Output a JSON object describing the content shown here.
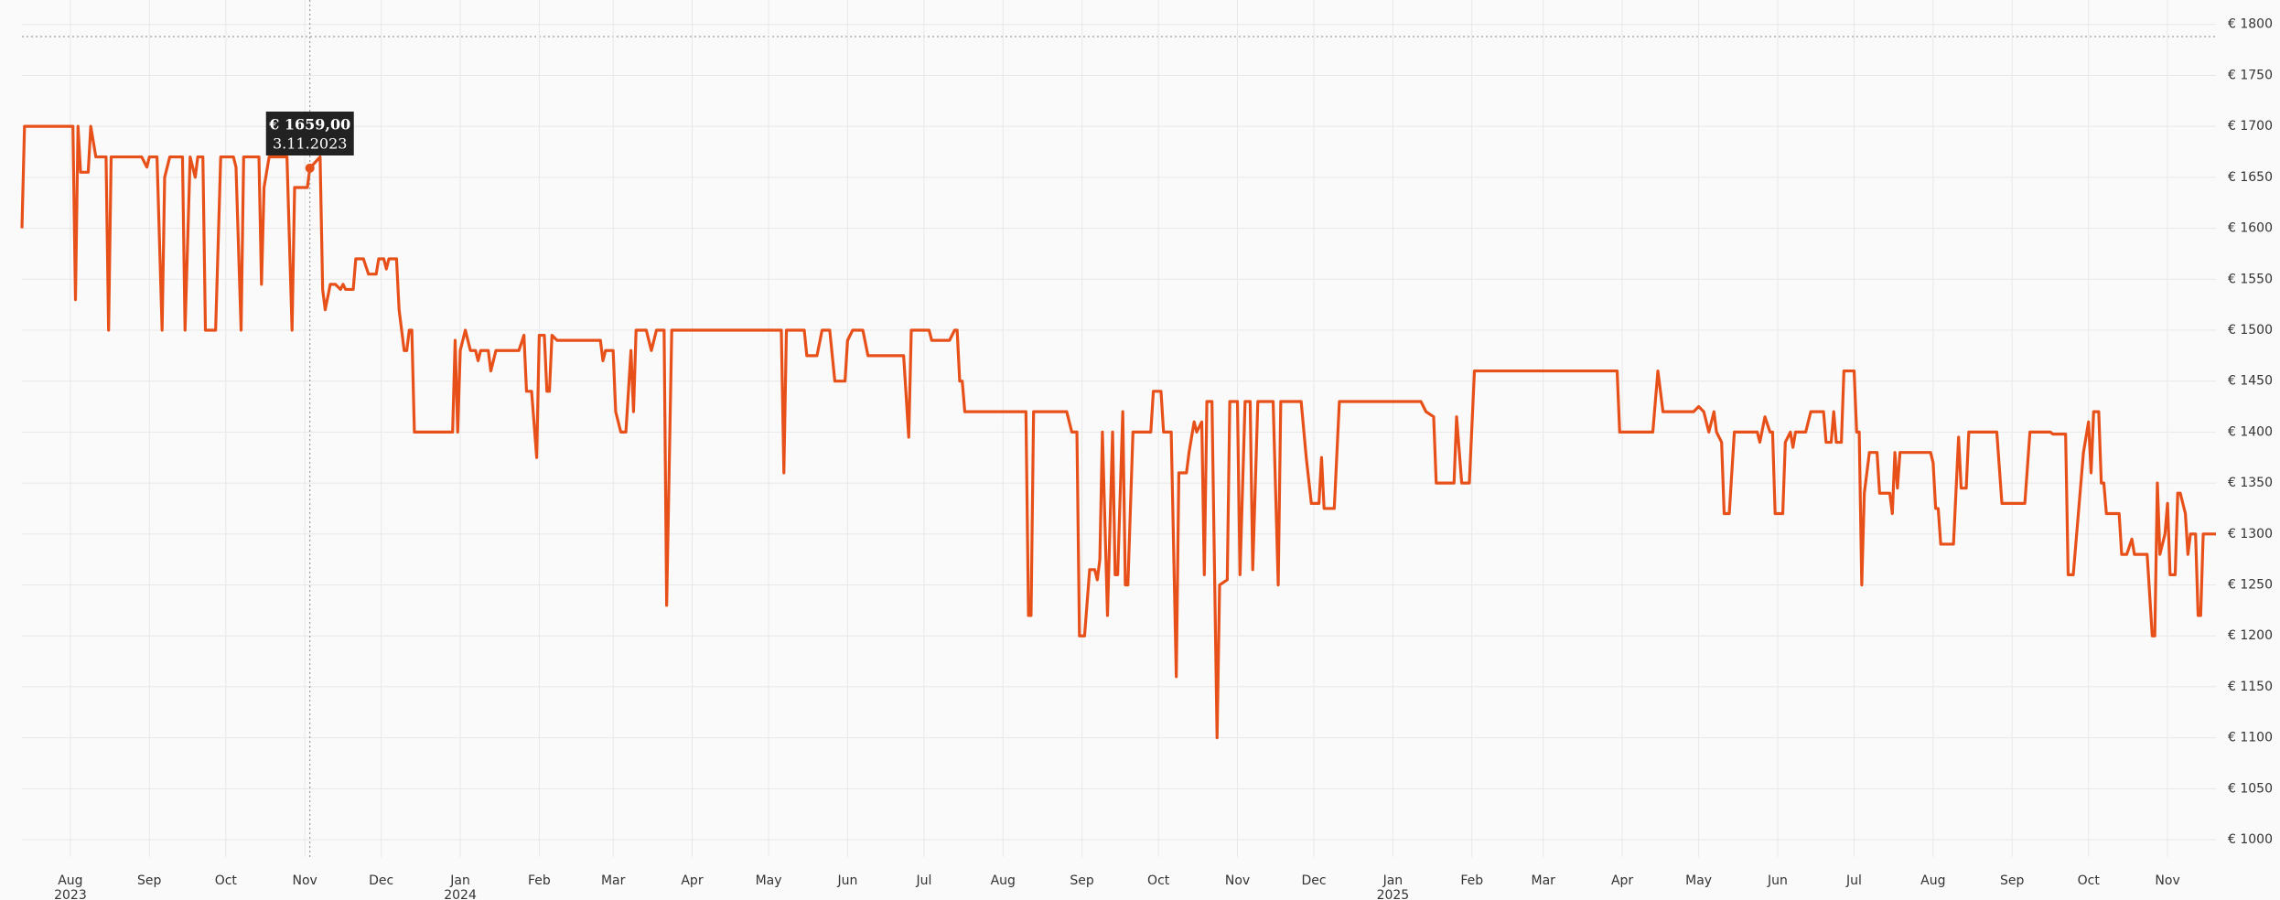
{
  "chart_data": {
    "type": "line",
    "color": "#e8501a",
    "grid": true,
    "xlim": [
      "2023-07-13",
      "2025-11-20"
    ],
    "ylim": [
      983,
      1824
    ],
    "yticks": [
      {
        "value": 1000,
        "label": "€ 1000"
      },
      {
        "value": 1050,
        "label": "€ 1050"
      },
      {
        "value": 1100,
        "label": "€ 1100"
      },
      {
        "value": 1150,
        "label": "€ 1150"
      },
      {
        "value": 1200,
        "label": "€ 1200"
      },
      {
        "value": 1250,
        "label": "€ 1250"
      },
      {
        "value": 1300,
        "label": "€ 1300"
      },
      {
        "value": 1350,
        "label": "€ 1350"
      },
      {
        "value": 1400,
        "label": "€ 1400"
      },
      {
        "value": 1450,
        "label": "€ 1450"
      },
      {
        "value": 1500,
        "label": "€ 1500"
      },
      {
        "value": 1550,
        "label": "€ 1550"
      },
      {
        "value": 1600,
        "label": "€ 1600"
      },
      {
        "value": 1650,
        "label": "€ 1650"
      },
      {
        "value": 1700,
        "label": "€ 1700"
      },
      {
        "value": 1750,
        "label": "€ 1750"
      },
      {
        "value": 1800,
        "label": "€ 1800"
      }
    ],
    "xticks": [
      {
        "value": "2023-08-01",
        "label": "Aug"
      },
      {
        "value": "2023-09-01",
        "label": "Sep"
      },
      {
        "value": "2023-10-01",
        "label": "Oct"
      },
      {
        "value": "2023-11-01",
        "label": "Nov"
      },
      {
        "value": "2023-12-01",
        "label": "Dec"
      },
      {
        "value": "2024-01-01",
        "label": "Jan"
      },
      {
        "value": "2024-02-01",
        "label": "Feb"
      },
      {
        "value": "2024-03-01",
        "label": "Mar"
      },
      {
        "value": "2024-04-01",
        "label": "Apr"
      },
      {
        "value": "2024-05-01",
        "label": "May"
      },
      {
        "value": "2024-06-01",
        "label": "Jun"
      },
      {
        "value": "2024-07-01",
        "label": "Jul"
      },
      {
        "value": "2024-08-01",
        "label": "Aug"
      },
      {
        "value": "2024-09-01",
        "label": "Sep"
      },
      {
        "value": "2024-10-01",
        "label": "Oct"
      },
      {
        "value": "2024-11-01",
        "label": "Nov"
      },
      {
        "value": "2024-12-01",
        "label": "Dec"
      },
      {
        "value": "2025-01-01",
        "label": "Jan"
      },
      {
        "value": "2025-02-01",
        "label": "Feb"
      },
      {
        "value": "2025-03-01",
        "label": "Mar"
      },
      {
        "value": "2025-04-01",
        "label": "Apr"
      },
      {
        "value": "2025-05-01",
        "label": "May"
      },
      {
        "value": "2025-06-01",
        "label": "Jun"
      },
      {
        "value": "2025-07-01",
        "label": "Jul"
      },
      {
        "value": "2025-08-01",
        "label": "Aug"
      },
      {
        "value": "2025-09-01",
        "label": "Sep"
      },
      {
        "value": "2025-10-01",
        "label": "Oct"
      },
      {
        "value": "2025-11-01",
        "label": "Nov"
      }
    ],
    "year_labels": [
      {
        "value": "2023-08-01",
        "label": "2023"
      },
      {
        "value": "2024-01-01",
        "label": "2024"
      },
      {
        "value": "2025-01-01",
        "label": "2025"
      }
    ],
    "tooltip": {
      "x": "2023-11-03",
      "value": 1659,
      "label": "€ 1659,00",
      "date_label": "3.11.2023"
    },
    "x": [
      "2023-07-13",
      "2023-07-14",
      "2023-07-28",
      "2023-08-02",
      "2023-08-03",
      "2023-08-04",
      "2023-08-05",
      "2023-08-08",
      "2023-08-09",
      "2023-08-11",
      "2023-08-15",
      "2023-08-16",
      "2023-08-17",
      "2023-08-29",
      "2023-08-31",
      "2023-09-01",
      "2023-09-04",
      "2023-09-06",
      "2023-09-07",
      "2023-09-09",
      "2023-09-14",
      "2023-09-15",
      "2023-09-17",
      "2023-09-19",
      "2023-09-20",
      "2023-09-22",
      "2023-09-23",
      "2023-09-27",
      "2023-09-29",
      "2023-10-04",
      "2023-10-05",
      "2023-10-07",
      "2023-10-08",
      "2023-10-14",
      "2023-10-15",
      "2023-10-16",
      "2023-10-18",
      "2023-10-25",
      "2023-10-27",
      "2023-10-28",
      "2023-11-02",
      "2023-11-03",
      "2023-11-07",
      "2023-11-08",
      "2023-11-09",
      "2023-11-11",
      "2023-11-13",
      "2023-11-15",
      "2023-11-16",
      "2023-11-17",
      "2023-11-20",
      "2023-11-21",
      "2023-11-24",
      "2023-11-26",
      "2023-11-29",
      "2023-11-30",
      "2023-12-02",
      "2023-12-03",
      "2023-12-04",
      "2023-12-07",
      "2023-12-08",
      "2023-12-10",
      "2023-12-11",
      "2023-12-12",
      "2023-12-13",
      "2023-12-14",
      "2023-12-29",
      "2023-12-30",
      "2023-12-31",
      "2024-01-01",
      "2024-01-03",
      "2024-01-05",
      "2024-01-07",
      "2024-01-08",
      "2024-01-09",
      "2024-01-12",
      "2024-01-13",
      "2024-01-15",
      "2024-01-24",
      "2024-01-26",
      "2024-01-27",
      "2024-01-29",
      "2024-01-31",
      "2024-02-01",
      "2024-02-03",
      "2024-02-04",
      "2024-02-05",
      "2024-02-06",
      "2024-02-08",
      "2024-02-25",
      "2024-02-26",
      "2024-02-27",
      "2024-03-01",
      "2024-03-02",
      "2024-03-04",
      "2024-03-06",
      "2024-03-08",
      "2024-03-09",
      "2024-03-10",
      "2024-03-14",
      "2024-03-16",
      "2024-03-18",
      "2024-03-21",
      "2024-03-22",
      "2024-03-24",
      "2024-05-06",
      "2024-05-07",
      "2024-05-08",
      "2024-05-15",
      "2024-05-16",
      "2024-05-20",
      "2024-05-22",
      "2024-05-25",
      "2024-05-27",
      "2024-05-31",
      "2024-06-01",
      "2024-06-03",
      "2024-06-07",
      "2024-06-09",
      "2024-06-23",
      "2024-06-25",
      "2024-06-26",
      "2024-07-03",
      "2024-07-04",
      "2024-07-11",
      "2024-07-13",
      "2024-07-14",
      "2024-07-15",
      "2024-07-16",
      "2024-07-17",
      "2024-08-10",
      "2024-08-11",
      "2024-08-12",
      "2024-08-13",
      "2024-08-26",
      "2024-08-28",
      "2024-08-30",
      "2024-08-31",
      "2024-09-02",
      "2024-09-04",
      "2024-09-06",
      "2024-09-07",
      "2024-09-08",
      "2024-09-09",
      "2024-09-11",
      "2024-09-13",
      "2024-09-14",
      "2024-09-15",
      "2024-09-17",
      "2024-09-18",
      "2024-09-19",
      "2024-09-21",
      "2024-09-28",
      "2024-09-29",
      "2024-10-02",
      "2024-10-03",
      "2024-10-06",
      "2024-10-08",
      "2024-10-09",
      "2024-10-12",
      "2024-10-13",
      "2024-10-15",
      "2024-10-16",
      "2024-10-18",
      "2024-10-19",
      "2024-10-20",
      "2024-10-22",
      "2024-10-24",
      "2024-10-25",
      "2024-10-28",
      "2024-10-29",
      "2024-11-01",
      "2024-11-02",
      "2024-11-04",
      "2024-11-06",
      "2024-11-07",
      "2024-11-09",
      "2024-11-15",
      "2024-11-17",
      "2024-11-18",
      "2024-11-26",
      "2024-11-28",
      "2024-11-30",
      "2024-12-03",
      "2024-12-04",
      "2024-12-05",
      "2024-12-09",
      "2024-12-11",
      "2025-01-12",
      "2025-01-14",
      "2025-01-17",
      "2025-01-18",
      "2025-01-25",
      "2025-01-26",
      "2025-01-28",
      "2025-01-31",
      "2025-02-02",
      "2025-03-30",
      "2025-03-31",
      "2025-04-13",
      "2025-04-15",
      "2025-04-17",
      "2025-04-29",
      "2025-05-01",
      "2025-05-03",
      "2025-05-05",
      "2025-05-07",
      "2025-05-08",
      "2025-05-10",
      "2025-05-11",
      "2025-05-13",
      "2025-05-15",
      "2025-05-24",
      "2025-05-25",
      "2025-05-27",
      "2025-05-29",
      "2025-05-30",
      "2025-05-31",
      "2025-06-03",
      "2025-06-04",
      "2025-06-06",
      "2025-06-07",
      "2025-06-08",
      "2025-06-12",
      "2025-06-14",
      "2025-06-19",
      "2025-06-20",
      "2025-06-22",
      "2025-06-23",
      "2025-06-24",
      "2025-06-26",
      "2025-06-27",
      "2025-07-01",
      "2025-07-02",
      "2025-07-03",
      "2025-07-04",
      "2025-07-05",
      "2025-07-07",
      "2025-07-10",
      "2025-07-11",
      "2025-07-15",
      "2025-07-16",
      "2025-07-17",
      "2025-07-18",
      "2025-07-19",
      "2025-07-31",
      "2025-08-01",
      "2025-08-02",
      "2025-08-03",
      "2025-08-04",
      "2025-08-09",
      "2025-08-11",
      "2025-08-12",
      "2025-08-14",
      "2025-08-15",
      "2025-08-26",
      "2025-08-28",
      "2025-09-06",
      "2025-09-08",
      "2025-09-16",
      "2025-09-17",
      "2025-09-22",
      "2025-09-23",
      "2025-09-25",
      "2025-09-26",
      "2025-09-29",
      "2025-10-01",
      "2025-10-02",
      "2025-10-03",
      "2025-10-05",
      "2025-10-06",
      "2025-10-07",
      "2025-10-08",
      "2025-10-13",
      "2025-10-14",
      "2025-10-16",
      "2025-10-18",
      "2025-10-19",
      "2025-10-24",
      "2025-10-26",
      "2025-10-27",
      "2025-10-28",
      "2025-10-29",
      "2025-10-31",
      "2025-11-01",
      "2025-11-02",
      "2025-11-04",
      "2025-11-05",
      "2025-11-06",
      "2025-11-08",
      "2025-11-09",
      "2025-11-10",
      "2025-11-12",
      "2025-11-13",
      "2025-11-14",
      "2025-11-15",
      "2025-11-20"
    ],
    "values": [
      1600,
      1700,
      1700,
      1700,
      1530,
      1700,
      1655,
      1655,
      1700,
      1670,
      1670,
      1500,
      1670,
      1670,
      1660,
      1670,
      1670,
      1500,
      1650,
      1670,
      1670,
      1500,
      1670,
      1650,
      1670,
      1670,
      1500,
      1500,
      1670,
      1670,
      1660,
      1500,
      1670,
      1670,
      1545,
      1640,
      1670,
      1670,
      1500,
      1640,
      1640,
      1659,
      1670,
      1540,
      1520,
      1545,
      1545,
      1540,
      1545,
      1540,
      1540,
      1570,
      1570,
      1555,
      1555,
      1570,
      1570,
      1560,
      1570,
      1570,
      1520,
      1480,
      1480,
      1500,
      1500,
      1400,
      1400,
      1490,
      1400,
      1480,
      1500,
      1480,
      1480,
      1470,
      1480,
      1480,
      1460,
      1480,
      1480,
      1495,
      1440,
      1440,
      1375,
      1495,
      1495,
      1440,
      1440,
      1495,
      1490,
      1490,
      1470,
      1480,
      1480,
      1420,
      1400,
      1400,
      1480,
      1420,
      1500,
      1500,
      1480,
      1500,
      1500,
      1230,
      1500,
      1500,
      1360,
      1500,
      1500,
      1475,
      1475,
      1500,
      1500,
      1450,
      1450,
      1490,
      1500,
      1500,
      1475,
      1475,
      1395,
      1500,
      1500,
      1490,
      1490,
      1500,
      1500,
      1450,
      1450,
      1420,
      1420,
      1220,
      1220,
      1420,
      1420,
      1400,
      1400,
      1200,
      1200,
      1265,
      1265,
      1255,
      1275,
      1400,
      1220,
      1400,
      1260,
      1260,
      1420,
      1250,
      1250,
      1400,
      1400,
      1440,
      1440,
      1400,
      1400,
      1160,
      1360,
      1360,
      1380,
      1410,
      1400,
      1410,
      1260,
      1430,
      1430,
      1100,
      1250,
      1255,
      1430,
      1430,
      1260,
      1430,
      1430,
      1265,
      1430,
      1430,
      1250,
      1430,
      1430,
      1375,
      1330,
      1330,
      1375,
      1325,
      1325,
      1430,
      1430,
      1420,
      1415,
      1350,
      1350,
      1415,
      1350,
      1350,
      1460,
      1460,
      1400,
      1400,
      1460,
      1420,
      1420,
      1425,
      1420,
      1400,
      1420,
      1400,
      1390,
      1320,
      1320,
      1400,
      1400,
      1390,
      1415,
      1400,
      1400,
      1320,
      1320,
      1390,
      1400,
      1385,
      1400,
      1400,
      1420,
      1420,
      1390,
      1390,
      1420,
      1390,
      1390,
      1460,
      1460,
      1400,
      1400,
      1250,
      1340,
      1380,
      1380,
      1340,
      1340,
      1320,
      1380,
      1345,
      1380,
      1380,
      1370,
      1325,
      1325,
      1290,
      1290,
      1395,
      1345,
      1345,
      1400,
      1400,
      1330,
      1330,
      1400,
      1400,
      1398,
      1398,
      1260,
      1260,
      1290,
      1380,
      1410,
      1360,
      1420,
      1420,
      1350,
      1350,
      1320,
      1320,
      1280,
      1280,
      1295,
      1280,
      1280,
      1200,
      1200,
      1350,
      1280,
      1300,
      1330,
      1260,
      1260,
      1340,
      1340,
      1320,
      1280,
      1300,
      1300,
      1220,
      1220,
      1300,
      1300
    ]
  }
}
